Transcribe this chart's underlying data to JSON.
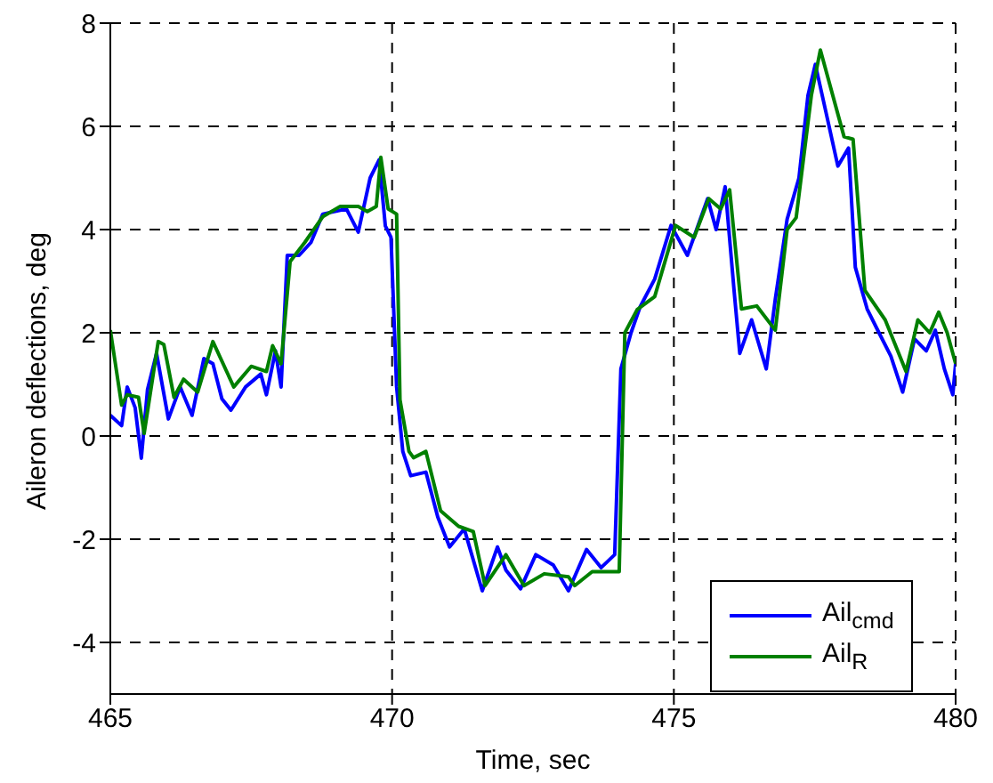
{
  "chart_data": {
    "type": "line",
    "xlabel": "Time, sec",
    "ylabel": "Aileron deflections, deg",
    "xlim": [
      465,
      480
    ],
    "xticks": [
      465,
      470,
      475,
      480
    ],
    "ylim": [
      -5,
      8
    ],
    "yticks": [
      -4,
      -2,
      0,
      2,
      4,
      6,
      8
    ],
    "grid": true,
    "legend": "bottom right",
    "marker": "none",
    "line_style": "solid",
    "series": [
      {
        "name": "Ail$_{cmd}$",
        "color": "#0000ff",
        "x": [
          465.0,
          465.2,
          465.3,
          465.44,
          465.55,
          465.66,
          465.82,
          466.03,
          466.24,
          466.45,
          466.66,
          466.82,
          466.98,
          467.14,
          467.4,
          467.67,
          467.77,
          467.93,
          468.03,
          468.14,
          468.35,
          468.56,
          468.77,
          469.19,
          469.4,
          469.61,
          469.77,
          469.88,
          469.98,
          470.08,
          470.19,
          470.33,
          470.6,
          470.81,
          471.02,
          471.28,
          471.6,
          471.87,
          472.02,
          472.28,
          472.55,
          472.86,
          473.13,
          473.45,
          473.71,
          473.95,
          474.06,
          474.24,
          474.4,
          474.66,
          474.95,
          475.24,
          475.6,
          475.75,
          475.91,
          476.07,
          476.17,
          476.38,
          476.64,
          476.8,
          477.01,
          477.22,
          477.38,
          477.51,
          477.7,
          477.91,
          478.1,
          478.22,
          478.43,
          478.64,
          478.85,
          479.06,
          479.27,
          479.48,
          479.64,
          479.8,
          479.95,
          480.0
        ],
        "values": [
          0.4,
          0.2,
          0.95,
          0.55,
          -0.43,
          0.9,
          1.6,
          0.33,
          0.95,
          0.4,
          1.5,
          1.4,
          0.72,
          0.5,
          0.95,
          1.2,
          0.8,
          1.65,
          0.95,
          3.5,
          3.5,
          3.75,
          4.3,
          4.4,
          3.95,
          5.0,
          5.35,
          4.07,
          3.85,
          0.95,
          -0.3,
          -0.77,
          -0.7,
          -1.57,
          -2.15,
          -1.8,
          -3.0,
          -2.15,
          -2.6,
          -2.96,
          -2.3,
          -2.5,
          -3.0,
          -2.2,
          -2.55,
          -2.3,
          1.3,
          2.0,
          2.5,
          3.04,
          4.08,
          3.5,
          4.6,
          4.0,
          4.83,
          2.8,
          1.6,
          2.25,
          1.3,
          2.65,
          4.2,
          5.0,
          6.6,
          7.2,
          6.27,
          5.23,
          5.58,
          3.27,
          2.46,
          2.0,
          1.55,
          0.85,
          1.88,
          1.65,
          2.05,
          1.3,
          0.8,
          1.4
        ]
      },
      {
        "name": "Ail$_{R}$",
        "color": "#008000",
        "x": [
          465.0,
          465.2,
          465.3,
          465.5,
          465.6,
          465.85,
          465.95,
          466.13,
          466.3,
          466.55,
          466.82,
          467.19,
          467.5,
          467.77,
          467.88,
          468.03,
          468.19,
          468.45,
          468.77,
          469.08,
          469.4,
          469.56,
          469.72,
          469.8,
          469.93,
          470.08,
          470.14,
          470.3,
          470.38,
          470.6,
          470.86,
          471.18,
          471.44,
          471.65,
          472.02,
          472.34,
          472.7,
          473.13,
          473.24,
          473.55,
          474.03,
          474.13,
          474.35,
          474.66,
          475.03,
          475.36,
          475.62,
          475.83,
          475.99,
          476.2,
          476.47,
          476.8,
          477.01,
          477.17,
          477.44,
          477.6,
          478.02,
          478.18,
          478.39,
          478.75,
          479.12,
          479.33,
          479.54,
          479.7,
          479.85,
          480.0
        ],
        "values": [
          2.05,
          0.6,
          0.8,
          0.75,
          0.05,
          1.83,
          1.77,
          0.75,
          1.1,
          0.85,
          1.83,
          0.95,
          1.35,
          1.25,
          1.75,
          1.4,
          3.38,
          3.75,
          4.25,
          4.45,
          4.45,
          4.35,
          4.45,
          5.4,
          4.4,
          4.3,
          0.7,
          -0.3,
          -0.42,
          -0.3,
          -1.45,
          -1.75,
          -1.85,
          -2.9,
          -2.3,
          -2.9,
          -2.67,
          -2.73,
          -2.9,
          -2.63,
          -2.63,
          2.0,
          2.45,
          2.7,
          4.08,
          3.85,
          4.6,
          4.4,
          4.77,
          2.46,
          2.52,
          2.05,
          4.0,
          4.23,
          6.6,
          7.48,
          5.8,
          5.75,
          2.82,
          2.25,
          1.25,
          2.25,
          2.0,
          2.4,
          2.0,
          1.4
        ]
      }
    ]
  }
}
